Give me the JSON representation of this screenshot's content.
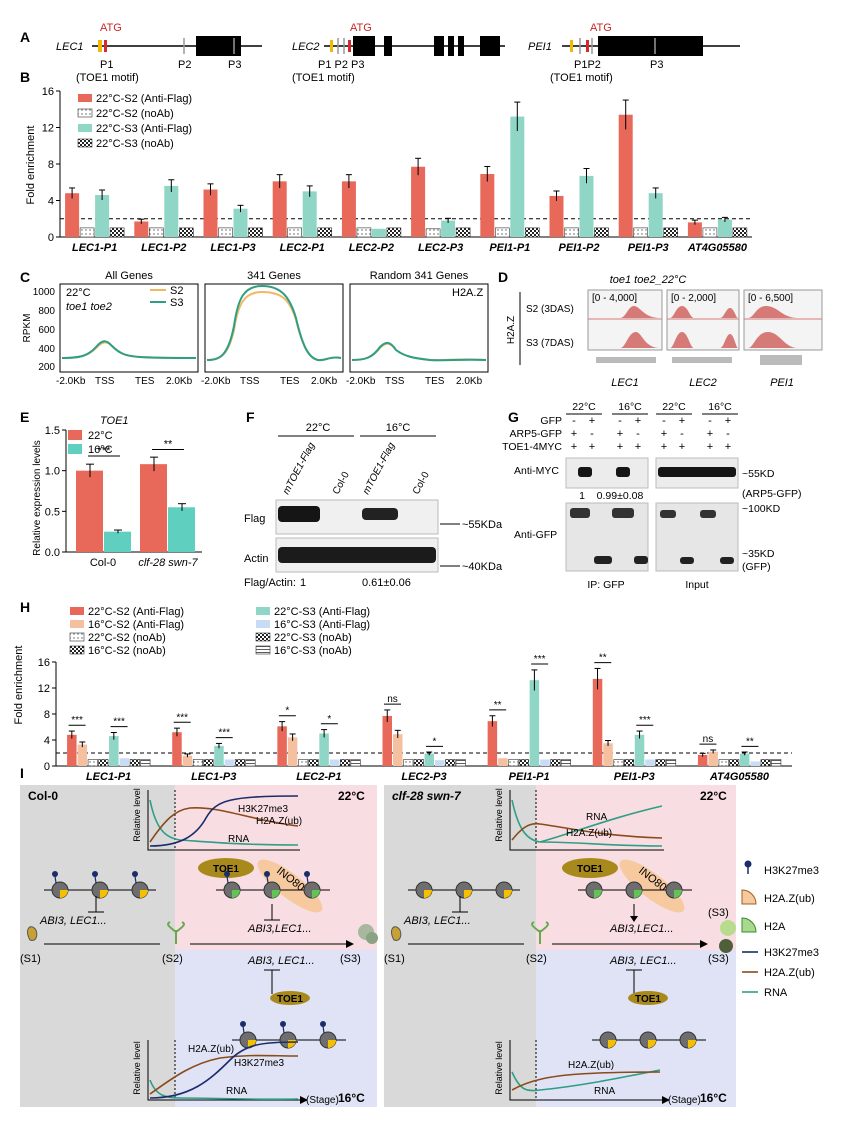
{
  "panels": {
    "A": {
      "letter": "A",
      "genes": [
        {
          "name": "LEC1",
          "atg": "ATG",
          "p1": "P1",
          "p2": "P2",
          "p3": "P3",
          "motif": "(TOE1 motif)"
        },
        {
          "name": "LEC2",
          "atg": "ATG",
          "p_labels": "P1 P2 P3",
          "motif": "(TOE1 motif)"
        },
        {
          "name": "PEI1",
          "atg": "ATG",
          "p12": "P1P2",
          "p3": "P3",
          "motif": "(TOE1 motif)"
        }
      ]
    },
    "B": {
      "letter": "B",
      "legend": [
        "22°C-S2 (Anti-Flag)",
        "22°C-S2 (noAb)",
        "22°C-S3 (Anti-Flag)",
        "22°C-S3 (noAb)"
      ]
    },
    "C": {
      "letter": "C",
      "titles": [
        "All Genes",
        "341 Genes",
        "Random 341 Genes"
      ],
      "sublabels": [
        "22°C",
        "toe1 toe2",
        "H2A.Z"
      ],
      "legend": [
        "S2",
        "S3"
      ],
      "ylabel": "RPKM",
      "yticks": [
        "1000",
        "800",
        "600",
        "400",
        "200"
      ],
      "xticks": [
        "-2.0Kb",
        "TSS",
        "TES",
        "2.0Kb"
      ]
    },
    "D": {
      "letter": "D",
      "title": "toe1 toe2_22°C",
      "mark": "H2A.Z",
      "rows": [
        "S2 (3DAS)",
        "S3 (7DAS)"
      ],
      "ranges": [
        "[0 - 4,000]",
        "[0 - 2,000]",
        "[0 - 6,500]"
      ],
      "genes": [
        "LEC1",
        "LEC2",
        "PEI1"
      ]
    },
    "E": {
      "letter": "E",
      "title": "TOE1",
      "legend": [
        "22°C",
        "16°C"
      ],
      "ylabel": "Relative expression levels",
      "groups": [
        "Col-0",
        "clf-28 swn-7"
      ],
      "sig": [
        "***",
        "**"
      ]
    },
    "F": {
      "letter": "F",
      "temps": [
        "22°C",
        "16°C"
      ],
      "lanes": [
        "mTOE1-Flag",
        "Col-0",
        "mTOE1-Flag",
        "Col-0"
      ],
      "rows": [
        "Flag",
        "Actin"
      ],
      "sizes": [
        "~55KDa",
        "~40KDa"
      ],
      "ratio_label": "Flag/Actin:",
      "ratios": [
        "1",
        "0.61±0.06"
      ]
    },
    "G": {
      "letter": "G",
      "temps": [
        "22°C",
        "16°C",
        "22°C",
        "16°C"
      ],
      "row_labels": [
        "GFP",
        "ARP5-GFP",
        "TOE1-4MYC"
      ],
      "signs": [
        [
          "-",
          "+",
          "-",
          "+",
          "-",
          "+",
          "-",
          "+"
        ],
        [
          "+",
          "-",
          "+",
          "-",
          "+",
          "-",
          "+",
          "-"
        ],
        [
          "+",
          "+",
          "+",
          "+",
          "+",
          "+",
          "+",
          "+"
        ]
      ],
      "blots": [
        "Anti-MYC",
        "Anti-GFP"
      ],
      "quant": [
        "1",
        "0.99±0.08"
      ],
      "sizes": [
        "~55KD",
        "(ARP5-GFP)",
        "~100KD",
        "~35KD",
        "(GFP)"
      ],
      "bottom": [
        "IP: GFP",
        "Input"
      ]
    },
    "H": {
      "letter": "H",
      "legend": [
        "22°C-S2 (Anti-Flag)",
        "16°C-S2 (Anti-Flag)",
        "22°C-S2 (noAb)",
        "16°C-S2 (noAb)",
        "22°C-S3 (Anti-Flag)",
        "16°C-S3 (Anti-Flag)",
        "22°C-S3 (noAb)",
        "16°C-S3 (noAb)"
      ]
    },
    "I": {
      "letter": "I",
      "left_title": "Col-0",
      "right_title": "clf-28 swn-7",
      "temp_hi": "22°C",
      "temp_lo": "16°C",
      "rel_level": "Relative level",
      "curves_left_top": [
        "H3K27me3",
        "H2A.Z(ub)",
        "RNA"
      ],
      "curves_left_bottom": [
        "H2A.Z(ub)",
        "H3K27me3",
        "RNA"
      ],
      "curves_right_top": [
        "RNA",
        "H2A.Z(ub)"
      ],
      "curves_right_bottom": [
        "H2A.Z(ub)",
        "RNA"
      ],
      "complex": "INO80-C",
      "toe1": "TOE1",
      "targets": "ABI3,LEC1...",
      "targets_sp": "ABI3, LEC1...",
      "stages": [
        "(S1)",
        "(S2)",
        "(S3)"
      ],
      "stage_axis": "(Stage)",
      "legend": [
        "H3K27me3",
        "H2A.Z(ub)",
        "H2A",
        "H3K27me3",
        "H2A.Z(ub)",
        "RNA"
      ]
    }
  },
  "chart_data": [
    {
      "id": "B",
      "type": "bar",
      "title": "",
      "ylabel": "Fold enrichment",
      "ylim": [
        0,
        16
      ],
      "yticks": [
        0,
        4,
        8,
        12,
        16
      ],
      "threshold": 2,
      "categories": [
        "LEC1-P1",
        "LEC1-P2",
        "LEC1-P3",
        "LEC2-P1",
        "LEC2-P2",
        "LEC2-P3",
        "PEI1-P1",
        "PEI1-P2",
        "PEI1-P3",
        "AT4G05580"
      ],
      "series": [
        {
          "name": "22°C-S2 (Anti-Flag)",
          "color": "#e8685a",
          "values": [
            4.8,
            1.7,
            5.2,
            6.1,
            6.1,
            7.7,
            6.9,
            4.5,
            13.4,
            1.6
          ]
        },
        {
          "name": "22°C-S2 (noAb)",
          "color": "#ffffff",
          "values": [
            1.0,
            1.0,
            1.0,
            1.0,
            1.0,
            0.9,
            1.0,
            1.0,
            1.0,
            1.0
          ]
        },
        {
          "name": "22°C-S3 (Anti-Flag)",
          "color": "#8fd6c6",
          "values": [
            4.6,
            5.6,
            3.1,
            5.0,
            0.9,
            1.8,
            13.2,
            6.7,
            4.8,
            1.9
          ]
        },
        {
          "name": "22°C-S3 (noAb)",
          "color": "#444444",
          "values": [
            1.0,
            1.0,
            1.0,
            1.0,
            1.0,
            1.0,
            1.0,
            1.0,
            1.0,
            1.0
          ]
        }
      ]
    },
    {
      "id": "E",
      "type": "bar",
      "title": "TOE1",
      "ylabel": "Relative expression levels",
      "ylim": [
        0,
        1.5
      ],
      "yticks": [
        "0.0",
        "0.5",
        "1.0",
        "1.5"
      ],
      "categories": [
        "Col-0",
        "clf-28 swn-7"
      ],
      "series": [
        {
          "name": "22°C",
          "color": "#e8685a",
          "values": [
            1.0,
            1.08
          ]
        },
        {
          "name": "16°C",
          "color": "#5fd0bf",
          "values": [
            0.25,
            0.55
          ]
        }
      ]
    },
    {
      "id": "H",
      "type": "bar",
      "title": "",
      "ylabel": "Fold enrichment",
      "ylim": [
        0,
        16
      ],
      "yticks": [
        0,
        4,
        8,
        12,
        16
      ],
      "threshold": 2,
      "categories": [
        "LEC1-P1",
        "LEC1-P3",
        "LEC2-P1",
        "LEC2-P3",
        "PEI1-P1",
        "PEI1-P3",
        "AT4G05580"
      ],
      "series": [
        {
          "name": "22°C-S2 (Anti-Flag)",
          "color": "#e8685a",
          "values": [
            4.8,
            5.2,
            6.1,
            7.7,
            6.9,
            13.4,
            1.7
          ]
        },
        {
          "name": "16°C-S2 (Anti-Flag)",
          "color": "#f5c0a0",
          "values": [
            3.3,
            1.6,
            4.4,
            4.9,
            1.2,
            3.5,
            2.2
          ]
        },
        {
          "name": "22°C-S2 (noAb)",
          "color": "#ffffff",
          "values": [
            1.0,
            1.0,
            1.0,
            1.0,
            1.0,
            1.0,
            1.0
          ]
        },
        {
          "name": "16°C-S2 (noAb)",
          "color": "#333333",
          "values": [
            1.0,
            1.0,
            1.0,
            1.0,
            1.0,
            1.0,
            1.0
          ]
        },
        {
          "name": "22°C-S3 (Anti-Flag)",
          "color": "#8fd6c6",
          "values": [
            4.6,
            3.1,
            5.0,
            1.9,
            13.2,
            4.8,
            1.9
          ]
        },
        {
          "name": "16°C-S3 (Anti-Flag)",
          "color": "#c9dcf5",
          "values": [
            1.2,
            1.0,
            1.0,
            0.9,
            1.0,
            1.0,
            0.7
          ]
        },
        {
          "name": "22°C-S3 (noAb)",
          "color": "#555555",
          "values": [
            1.0,
            1.0,
            1.0,
            1.0,
            1.0,
            1.0,
            1.0
          ]
        },
        {
          "name": "16°C-S3 (noAb)",
          "color": "#ffffff",
          "values": [
            1.0,
            1.0,
            1.0,
            1.0,
            1.0,
            1.0,
            1.0
          ]
        }
      ],
      "significance": [
        "***",
        "***",
        "***",
        "***",
        "*",
        "*",
        "ns",
        "*",
        "**",
        "***",
        "**",
        "***",
        "ns",
        "**"
      ]
    }
  ]
}
